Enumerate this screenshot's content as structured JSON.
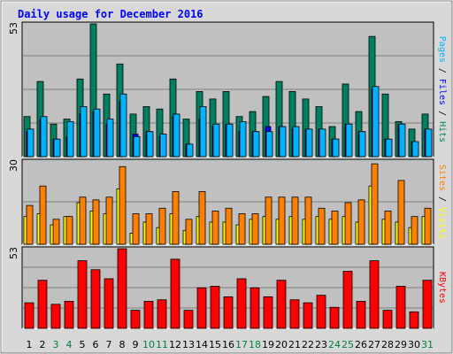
{
  "chart_data": [
    {
      "type": "bar",
      "title": "Daily usage for December 2016",
      "ymax_label": "53",
      "side_label_parts": [
        {
          "text": "Pages",
          "color": "#00b3ff"
        },
        {
          "text": " / ",
          "color": "#000000"
        },
        {
          "text": "Files",
          "color": "#0000ff"
        },
        {
          "text": " / ",
          "color": "#000000"
        },
        {
          "text": "Hits",
          "color": "#008060"
        }
      ],
      "ylim": [
        0,
        53
      ],
      "categories": [
        "1",
        "2",
        "3",
        "4",
        "5",
        "6",
        "7",
        "8",
        "9",
        "10",
        "11",
        "12",
        "13",
        "14",
        "15",
        "16",
        "17",
        "18",
        "19",
        "20",
        "21",
        "22",
        "23",
        "24",
        "25",
        "26",
        "27",
        "28",
        "29",
        "30",
        "31"
      ],
      "series": [
        {
          "name": "Hits",
          "color": "#008060",
          "values": [
            16,
            30,
            13,
            15,
            31,
            53,
            25,
            37,
            17,
            20,
            19,
            31,
            15,
            26,
            23,
            26,
            16,
            18,
            24,
            30,
            26,
            23,
            20,
            12,
            29,
            18,
            48,
            25,
            14,
            11,
            17
          ]
        },
        {
          "name": "Files",
          "color": "#0000ff",
          "values": [
            10,
            15,
            7,
            8,
            17,
            18,
            13,
            22,
            9,
            10,
            8,
            16,
            5,
            15,
            12,
            13,
            10,
            10,
            12,
            12,
            11,
            11,
            11,
            7,
            13,
            10,
            27,
            7,
            13,
            6,
            11
          ]
        },
        {
          "name": "Pages",
          "color": "#00b3ff",
          "values": [
            11,
            16,
            7,
            14,
            20,
            19,
            15,
            25,
            8,
            10,
            9,
            17,
            5,
            20,
            13,
            13,
            14,
            10,
            10,
            12,
            12,
            11,
            11,
            7,
            13,
            10,
            28,
            7,
            13,
            6,
            11
          ]
        }
      ]
    },
    {
      "type": "bar",
      "ymax_label": "30",
      "side_label_parts": [
        {
          "text": "Sites",
          "color": "#ff8000"
        },
        {
          "text": " / ",
          "color": "#000000"
        },
        {
          "text": "Visits",
          "color": "#ffff00"
        }
      ],
      "ylim": [
        0,
        30
      ],
      "categories": [
        "1",
        "2",
        "3",
        "4",
        "5",
        "6",
        "7",
        "8",
        "9",
        "10",
        "11",
        "12",
        "13",
        "14",
        "15",
        "16",
        "17",
        "18",
        "19",
        "20",
        "21",
        "22",
        "23",
        "24",
        "25",
        "26",
        "27",
        "28",
        "29",
        "30",
        "31"
      ],
      "series": [
        {
          "name": "Visits",
          "color": "#ffff00",
          "values": [
            10,
            11,
            7,
            10,
            15,
            12,
            11,
            20,
            4,
            8,
            6,
            11,
            5,
            10,
            8,
            8,
            7,
            9,
            10,
            9,
            10,
            9,
            10,
            9,
            10,
            8,
            21,
            9,
            8,
            6,
            10
          ]
        },
        {
          "name": "Sites",
          "color": "#ff8000",
          "values": [
            14,
            21,
            9,
            10,
            17,
            16,
            17,
            28,
            11,
            11,
            13,
            19,
            9,
            19,
            12,
            13,
            11,
            11,
            17,
            17,
            17,
            17,
            13,
            12,
            15,
            16,
            29,
            12,
            23,
            10,
            13
          ]
        }
      ]
    },
    {
      "type": "bar",
      "ymax_label": "53",
      "side_label_parts": [
        {
          "text": "KBytes",
          "color": "#ff0000"
        }
      ],
      "ylim": [
        0,
        53
      ],
      "categories": [
        "1",
        "2",
        "3",
        "4",
        "5",
        "6",
        "7",
        "8",
        "9",
        "10",
        "11",
        "12",
        "13",
        "14",
        "15",
        "16",
        "17",
        "18",
        "19",
        "20",
        "21",
        "22",
        "23",
        "24",
        "25",
        "26",
        "27",
        "28",
        "29",
        "30",
        "31"
      ],
      "series": [
        {
          "name": "KBytes",
          "color": "#ff0000",
          "values": [
            17,
            32,
            16,
            18,
            45,
            39,
            33,
            53,
            12,
            18,
            19,
            46,
            12,
            27,
            28,
            21,
            33,
            27,
            21,
            32,
            19,
            17,
            22,
            14,
            38,
            18,
            45,
            12,
            28,
            11,
            32
          ]
        }
      ]
    }
  ],
  "x_axis": {
    "labels": [
      "1",
      "2",
      "3",
      "4",
      "5",
      "6",
      "7",
      "8",
      "9",
      "10",
      "11",
      "12",
      "13",
      "14",
      "15",
      "16",
      "17",
      "18",
      "19",
      "20",
      "21",
      "22",
      "23",
      "24",
      "25",
      "26",
      "27",
      "28",
      "29",
      "30",
      "31"
    ],
    "weekend_color": "#008040",
    "weekday_color": "#000000",
    "weekend_days": [
      3,
      4,
      10,
      11,
      17,
      18,
      24,
      25,
      31
    ]
  },
  "colors": {
    "panel_bg": "#c0c0c0",
    "outer_bg": "#ffffff",
    "grid": "#808080",
    "title": "#0000ff"
  }
}
